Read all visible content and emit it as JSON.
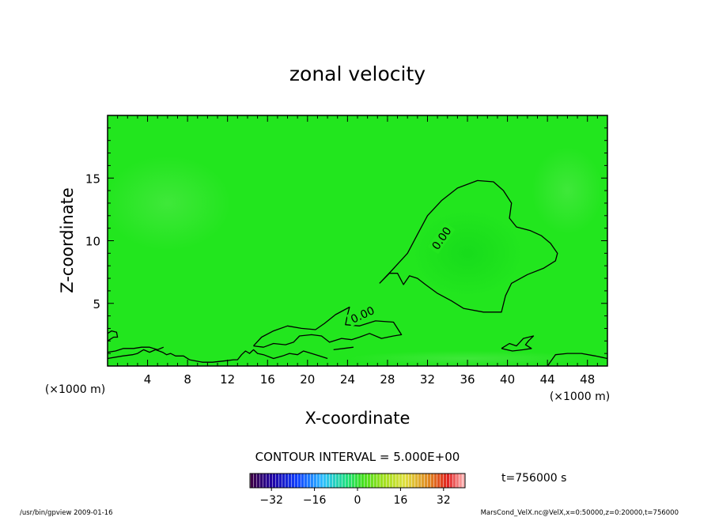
{
  "chart_data": {
    "type": "contour",
    "title": "zonal velocity",
    "xlabel": "X-coordinate",
    "ylabel": "Z-coordinate",
    "x_unit": "(×1000 m)",
    "y_unit": "(×1000 m)",
    "xlim": [
      0,
      50
    ],
    "ylim": [
      0,
      20
    ],
    "x_ticks": [
      4,
      8,
      12,
      16,
      20,
      24,
      28,
      32,
      36,
      40,
      44,
      48
    ],
    "y_ticks": [
      5,
      10,
      15
    ],
    "contour_label": "0.00",
    "contour_interval_text": "CONTOUR INTERVAL = 5.000E+00",
    "time_text": "t=756000 s",
    "colorbar": {
      "min": -40,
      "max": 40,
      "tick_labels": [
        -32,
        -16,
        0,
        16,
        32
      ]
    },
    "footer_left": "/usr/bin/gpview   2009-01-16",
    "footer_right": "MarsCond_VelX.nc@VelX,x=0:50000,z=0:20000,t=756000",
    "colors": {
      "field": "#22e61e",
      "field_light": "#3ee63a",
      "field_dark": "#14d81a"
    },
    "contours": [
      {
        "label_pos": [
          33.4,
          10.2
        ],
        "label_angle": -55,
        "points": [
          [
            27.2,
            6.6
          ],
          [
            28.4,
            7.6
          ],
          [
            30.0,
            9.0
          ],
          [
            31.0,
            10.5
          ],
          [
            32.0,
            12.0
          ],
          [
            33.4,
            13.2
          ],
          [
            35.0,
            14.2
          ],
          [
            37.0,
            14.8
          ],
          [
            38.6,
            14.7
          ],
          [
            39.6,
            14.0
          ],
          [
            40.4,
            13.0
          ],
          [
            40.2,
            11.8
          ],
          [
            40.9,
            11.1
          ],
          [
            42.3,
            10.8
          ],
          [
            43.4,
            10.4
          ],
          [
            44.3,
            9.8
          ],
          [
            45.0,
            9.0
          ],
          [
            44.8,
            8.4
          ],
          [
            43.6,
            7.8
          ],
          [
            42.0,
            7.3
          ],
          [
            40.4,
            6.6
          ],
          [
            39.8,
            5.6
          ],
          [
            39.4,
            4.3
          ],
          [
            37.6,
            4.3
          ],
          [
            35.6,
            4.6
          ],
          [
            34.4,
            5.2
          ],
          [
            33.0,
            5.8
          ],
          [
            31.8,
            6.5
          ],
          [
            31.0,
            7.0
          ],
          [
            30.2,
            7.2
          ],
          [
            29.6,
            6.5
          ],
          [
            29.0,
            7.4
          ],
          [
            28.2,
            7.4
          ],
          [
            27.2,
            6.6
          ]
        ]
      },
      {
        "label_pos": [
          25.5,
          4.1
        ],
        "label_angle": -25,
        "points": [
          [
            14.6,
            1.6
          ],
          [
            15.4,
            2.3
          ],
          [
            16.6,
            2.8
          ],
          [
            18.0,
            3.2
          ],
          [
            19.4,
            3.0
          ],
          [
            20.8,
            2.9
          ],
          [
            21.7,
            3.4
          ],
          [
            22.8,
            4.1
          ],
          [
            24.2,
            4.7
          ],
          [
            24.0,
            4.1
          ],
          [
            23.8,
            3.3
          ],
          [
            25.2,
            3.2
          ],
          [
            26.8,
            3.6
          ],
          [
            28.6,
            3.5
          ],
          [
            29.4,
            2.5
          ],
          [
            28.6,
            2.4
          ],
          [
            27.4,
            2.2
          ],
          [
            26.2,
            2.6
          ],
          [
            25.2,
            2.3
          ],
          [
            24.4,
            2.1
          ],
          [
            23.4,
            2.2
          ],
          [
            22.2,
            1.9
          ],
          [
            21.4,
            2.4
          ],
          [
            20.4,
            2.5
          ],
          [
            19.2,
            2.4
          ],
          [
            18.6,
            1.9
          ],
          [
            17.8,
            1.7
          ],
          [
            16.6,
            1.8
          ],
          [
            15.6,
            1.5
          ],
          [
            14.6,
            1.6
          ]
        ]
      },
      {
        "points": [
          [
            0.0,
            0.6
          ],
          [
            1.5,
            0.8
          ],
          [
            2.5,
            0.9
          ],
          [
            3.0,
            1.0
          ],
          [
            3.6,
            1.3
          ],
          [
            4.2,
            1.1
          ],
          [
            4.8,
            1.3
          ],
          [
            5.5,
            1.1
          ],
          [
            5.9,
            0.9
          ],
          [
            6.3,
            1.0
          ],
          [
            6.8,
            0.8
          ],
          [
            7.6,
            0.8
          ],
          [
            8.2,
            0.5
          ],
          [
            9.5,
            0.3
          ],
          [
            10.5,
            0.3
          ],
          [
            11.6,
            0.4
          ],
          [
            12.6,
            0.5
          ],
          [
            13.0,
            0.5
          ],
          [
            13.4,
            0.9
          ],
          [
            13.8,
            1.2
          ],
          [
            14.2,
            1.0
          ],
          [
            14.6,
            1.3
          ],
          [
            15.0,
            1.0
          ],
          [
            15.6,
            0.9
          ],
          [
            16.6,
            0.6
          ],
          [
            17.5,
            0.8
          ],
          [
            18.2,
            1.0
          ],
          [
            19.0,
            0.9
          ],
          [
            19.6,
            1.2
          ],
          [
            20.4,
            1.0
          ],
          [
            21.2,
            0.8
          ],
          [
            22.0,
            0.6
          ]
        ]
      },
      {
        "points": [
          [
            0.0,
            1.1
          ],
          [
            0.8,
            1.2
          ],
          [
            1.6,
            1.4
          ],
          [
            2.6,
            1.4
          ],
          [
            3.4,
            1.5
          ],
          [
            4.2,
            1.5
          ],
          [
            5.0,
            1.3
          ],
          [
            5.6,
            1.5
          ]
        ]
      },
      {
        "points": [
          [
            0.0,
            2.0
          ],
          [
            0.6,
            2.3
          ],
          [
            1.0,
            2.3
          ],
          [
            0.9,
            2.7
          ],
          [
            0.4,
            2.8
          ],
          [
            0.0,
            2.6
          ]
        ]
      },
      {
        "points": [
          [
            39.4,
            1.4
          ],
          [
            40.2,
            1.8
          ],
          [
            40.9,
            1.6
          ],
          [
            41.6,
            2.2
          ],
          [
            42.6,
            2.4
          ],
          [
            42.1,
            2.0
          ],
          [
            41.8,
            1.7
          ],
          [
            42.4,
            1.4
          ],
          [
            41.6,
            1.3
          ],
          [
            40.5,
            1.2
          ],
          [
            39.4,
            1.4
          ]
        ]
      },
      {
        "points": [
          [
            44.0,
            0.0
          ],
          [
            44.8,
            0.9
          ],
          [
            46.0,
            1.0
          ],
          [
            47.4,
            1.0
          ],
          [
            48.8,
            0.8
          ],
          [
            50.0,
            0.6
          ]
        ]
      },
      {
        "points": [
          [
            22.6,
            1.3
          ],
          [
            23.6,
            1.4
          ],
          [
            24.6,
            1.5
          ]
        ]
      }
    ]
  }
}
